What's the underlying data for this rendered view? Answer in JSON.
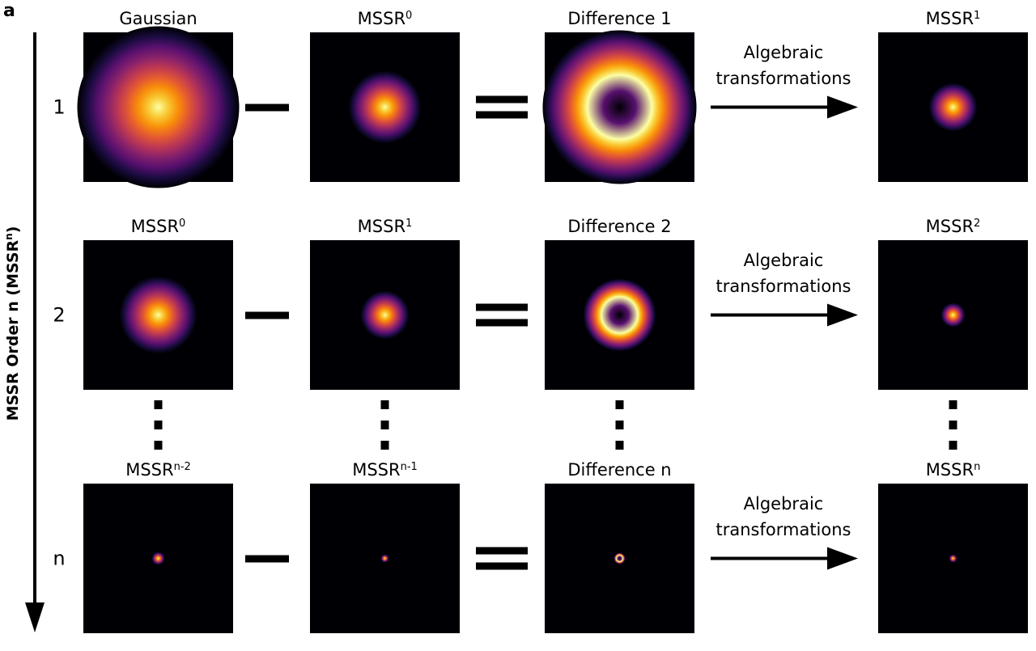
{
  "panel_label": "a",
  "axis_label": {
    "text": "MSSR Order n (MSSR",
    "sup": "n",
    "suffix": ")"
  },
  "rows": [
    {
      "label": "1",
      "panels": [
        {
          "base": "Gaussian"
        },
        {
          "base": "MSSR",
          "sup": "0"
        },
        {
          "base": "Difference 1"
        },
        {
          "base": "MSSR",
          "sup": "1"
        }
      ],
      "transform": [
        "Algebraic",
        "transformations"
      ]
    },
    {
      "label": "2",
      "panels": [
        {
          "base": "MSSR",
          "sup": "0"
        },
        {
          "base": "MSSR",
          "sup": "1"
        },
        {
          "base": "Difference 2"
        },
        {
          "base": "MSSR",
          "sup": "2"
        }
      ],
      "transform": [
        "Algebraic",
        "transformations"
      ]
    },
    {
      "label": "n",
      "panels": [
        {
          "base": "MSSR",
          "sup": "n-2"
        },
        {
          "base": "MSSR",
          "sup": "n-1"
        },
        {
          "base": "Difference n"
        },
        {
          "base": "MSSR",
          "sup": "n"
        }
      ],
      "transform": [
        "Algebraic",
        "transformations"
      ]
    }
  ]
}
